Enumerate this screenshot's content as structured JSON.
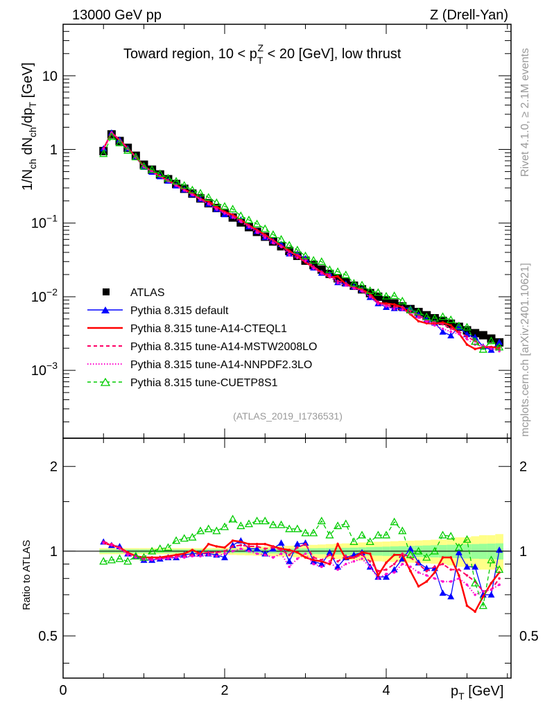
{
  "header": {
    "left": "13000 GeV pp",
    "right": "Z (Drell-Yan)"
  },
  "side": {
    "rivet": "Rivet 4.1.0, ≥ 2.1M events",
    "mcplots": "mcplots.cern.ch [arXiv:2401.10621]"
  },
  "analysis_id": "(ATLAS_2019_I1736531)",
  "chart_data": {
    "type": "line",
    "title_parts": {
      "pre": "Toward region, 10 < p",
      "sub": "T",
      "sup": "Z",
      "post": " < 20 [GeV], low thrust"
    },
    "ylabel_parts": [
      "1/N",
      "ch",
      " dN",
      "ch",
      "/dp",
      "T",
      " [GeV]"
    ],
    "xlabel_parts": [
      "p",
      "T",
      " [GeV]"
    ],
    "ratio_ylabel": "Ratio to ATLAS",
    "xlim": [
      0,
      5.545
    ],
    "ylim": [
      0.00012,
      50
    ],
    "yscale": "log",
    "ratio_ylim": [
      0.354,
      2.52
    ],
    "x_ticks": [
      {
        "v": 0,
        "label": "0"
      },
      {
        "v": 2,
        "label": "2"
      },
      {
        "v": 4,
        "label": "4"
      }
    ],
    "y_ticks": [
      {
        "v": 10,
        "base": "10",
        "exp": ""
      },
      {
        "v": 1,
        "base": "1",
        "exp": ""
      },
      {
        "v": 0.1,
        "base": "10",
        "exp": "−1"
      },
      {
        "v": 0.01,
        "base": "10",
        "exp": "−2"
      },
      {
        "v": 0.001,
        "base": "10",
        "exp": "−3"
      }
    ],
    "ratio_ticks": [
      {
        "v": 2,
        "label": "2"
      },
      {
        "v": 1,
        "label": "1"
      },
      {
        "v": 0.5,
        "label": "0.5"
      }
    ],
    "x": [
      0.5,
      0.6,
      0.7,
      0.8,
      0.9,
      1.0,
      1.1,
      1.2,
      1.3,
      1.4,
      1.5,
      1.6,
      1.7,
      1.8,
      1.9,
      2.0,
      2.1,
      2.2,
      2.3,
      2.4,
      2.5,
      2.6,
      2.7,
      2.8,
      2.9,
      3.0,
      3.1,
      3.2,
      3.3,
      3.4,
      3.5,
      3.6,
      3.7,
      3.8,
      3.9,
      4.0,
      4.1,
      4.2,
      4.3,
      4.4,
      4.5,
      4.6,
      4.7,
      4.8,
      4.9,
      5.0,
      5.1,
      5.2,
      5.3,
      5.4
    ],
    "data": {
      "name": "ATLAS",
      "values": [
        0.95,
        1.6,
        1.3,
        1.05,
        0.82,
        0.62,
        0.531,
        0.457,
        0.394,
        0.339,
        0.292,
        0.251,
        0.216,
        0.186,
        0.16,
        0.138,
        0.119,
        0.102,
        0.0881,
        0.0759,
        0.0653,
        0.0562,
        0.0484,
        0.0417,
        0.0359,
        0.0309,
        0.0269,
        0.0234,
        0.0204,
        0.0178,
        0.0158,
        0.0141,
        0.0126,
        0.0112,
        0.01,
        0.0089,
        0.0081,
        0.0074,
        0.0068,
        0.0062,
        0.0056,
        0.0051,
        0.0047,
        0.0043,
        0.0039,
        0.0035,
        0.0032,
        0.003,
        0.0027,
        0.0024
      ],
      "band_inner": [
        0.015,
        0.015,
        0.015,
        0.015,
        0.015,
        0.015,
        0.015,
        0.015,
        0.015,
        0.015,
        0.015,
        0.015,
        0.015,
        0.015,
        0.015,
        0.015,
        0.015,
        0.015,
        0.016,
        0.017,
        0.018,
        0.019,
        0.02,
        0.021,
        0.022,
        0.023,
        0.024,
        0.025,
        0.026,
        0.027,
        0.028,
        0.03,
        0.032,
        0.034,
        0.036,
        0.038,
        0.04,
        0.042,
        0.044,
        0.046,
        0.048,
        0.05,
        0.052,
        0.054,
        0.056,
        0.058,
        0.06,
        0.062,
        0.064,
        0.066
      ],
      "band_outer": [
        0.025,
        0.025,
        0.025,
        0.025,
        0.025,
        0.025,
        0.025,
        0.025,
        0.025,
        0.025,
        0.025,
        0.025,
        0.025,
        0.026,
        0.027,
        0.028,
        0.03,
        0.032,
        0.034,
        0.036,
        0.038,
        0.04,
        0.042,
        0.045,
        0.048,
        0.05,
        0.053,
        0.056,
        0.06,
        0.063,
        0.066,
        0.07,
        0.074,
        0.078,
        0.08,
        0.082,
        0.085,
        0.088,
        0.09,
        0.092,
        0.095,
        0.098,
        0.1,
        0.11,
        0.12,
        0.12,
        0.13,
        0.14,
        0.14,
        0.15
      ]
    },
    "series": [
      {
        "name": "Pythia 8.315 default",
        "color": "#0000ff",
        "style": "solid-filled-triangle",
        "ratio": [
          1.08,
          1.05,
          1.04,
          0.98,
          0.96,
          0.93,
          0.93,
          0.94,
          0.95,
          0.95,
          0.97,
          0.98,
          0.98,
          0.98,
          0.97,
          0.95,
          1.05,
          1.09,
          1.02,
          1.02,
          0.98,
          1.02,
          1.07,
          0.92,
          1.06,
          1.07,
          0.92,
          0.9,
          0.99,
          0.88,
          0.95,
          0.97,
          0.99,
          0.88,
          0.81,
          0.81,
          0.86,
          0.94,
          1.02,
          0.91,
          0.87,
          0.87,
          0.71,
          0.69,
          0.99,
          0.88,
          0.88,
          0.7,
          0.7,
          1.01
        ]
      },
      {
        "name": "Pythia 8.315 tune-A14-CTEQL1",
        "color": "#ff0000",
        "style": "solid",
        "ratio": [
          1.07,
          1.05,
          1.03,
          0.99,
          0.96,
          0.95,
          0.95,
          0.95,
          0.96,
          0.97,
          0.98,
          1.01,
          0.98,
          1.06,
          1.04,
          1.03,
          1.09,
          1.08,
          1.06,
          1.06,
          1.06,
          1.04,
          1.02,
          1.01,
          0.99,
          0.95,
          0.93,
          0.92,
          0.9,
          1.06,
          0.94,
          0.95,
          0.99,
          0.98,
          0.82,
          0.91,
          0.97,
          0.97,
          0.85,
          0.75,
          0.78,
          0.84,
          0.95,
          0.95,
          0.82,
          0.64,
          0.61,
          0.69,
          0.77,
          0.84
        ]
      },
      {
        "name": "Pythia 8.315 tune-A14-MSTW2008LO",
        "color": "#ff0066",
        "style": "dashed",
        "ratio": [
          1.08,
          1.06,
          1.03,
          0.98,
          0.96,
          0.94,
          0.94,
          0.94,
          0.95,
          0.96,
          0.96,
          0.97,
          0.98,
          0.99,
          0.99,
          1.0,
          1.04,
          1.05,
          1.04,
          1.04,
          1.02,
          1.03,
          1.01,
          0.97,
          1.03,
          1.06,
          0.95,
          0.93,
          0.97,
          0.92,
          0.96,
          0.95,
          0.97,
          0.92,
          0.85,
          0.86,
          0.9,
          0.98,
          0.95,
          0.9,
          0.85,
          0.88,
          0.9,
          0.86,
          0.86,
          0.82,
          0.78,
          0.72,
          0.73,
          0.8
        ]
      },
      {
        "name": "Pythia 8.315 tune-A14-NNPDF2.3LO",
        "color": "#ff00cc",
        "style": "dotted",
        "ratio": [
          1.07,
          1.05,
          1.02,
          0.97,
          0.95,
          0.93,
          0.93,
          0.94,
          0.94,
          0.95,
          0.95,
          0.96,
          0.96,
          0.97,
          0.96,
          0.98,
          1.0,
          1.02,
          1.0,
          0.98,
          0.97,
          0.95,
          0.98,
          0.88,
          0.94,
          0.98,
          0.9,
          0.88,
          0.92,
          0.86,
          0.9,
          0.92,
          0.94,
          0.88,
          0.8,
          0.83,
          0.84,
          0.9,
          0.88,
          0.84,
          0.82,
          0.8,
          0.78,
          0.78,
          0.8,
          0.76,
          0.7,
          0.72,
          0.73,
          0.76
        ]
      },
      {
        "name": "Pythia 8.315 tune-CUETP8S1",
        "color": "#00cc00",
        "style": "dashed-open-triangle",
        "ratio": [
          0.92,
          0.93,
          0.94,
          0.92,
          0.96,
          0.95,
          1.0,
          1.02,
          1.03,
          1.09,
          1.11,
          1.12,
          1.18,
          1.2,
          1.18,
          1.22,
          1.3,
          1.23,
          1.25,
          1.28,
          1.28,
          1.24,
          1.24,
          1.2,
          1.2,
          1.16,
          1.16,
          1.28,
          1.14,
          1.23,
          1.25,
          1.08,
          1.14,
          1.08,
          1.14,
          1.14,
          1.27,
          1.18,
          0.97,
          1.0,
          0.95,
          1.0,
          1.14,
          1.13,
          1.03,
          1.1,
          0.77,
          0.64,
          0.93,
          0.86
        ]
      }
    ],
    "legend_placement": "lower-left"
  }
}
